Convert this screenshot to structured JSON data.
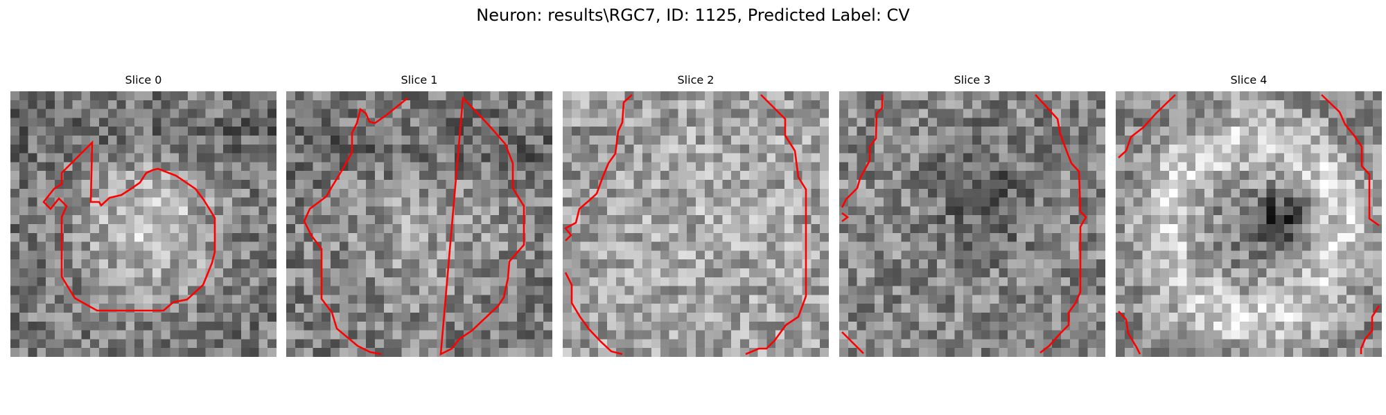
{
  "title": "Neuron: results\\RGC7, ID: 1125, Predicted Label: CV",
  "panels": [
    {
      "label": "Slice 0"
    },
    {
      "label": "Slice 1"
    },
    {
      "label": "Slice 2"
    },
    {
      "label": "Slice 3"
    },
    {
      "label": "Slice 4"
    }
  ],
  "colors": {
    "contour": "#ff0000",
    "background": "#ffffff"
  },
  "colormap": "gray"
}
